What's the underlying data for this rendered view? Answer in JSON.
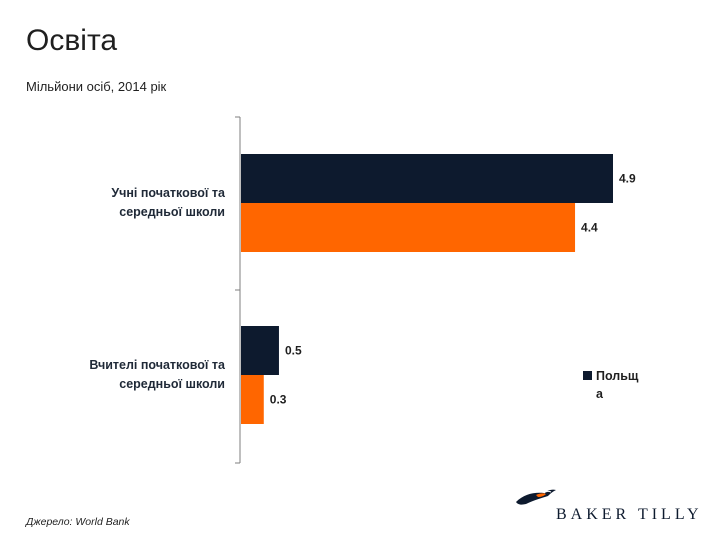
{
  "title": "Освіта",
  "subtitle": "Мільйони осіб, 2014 рік",
  "source": "Джерело: World Bank",
  "logo": {
    "text": "BAKER TILLY"
  },
  "colors": {
    "series1": "#0d1a2e",
    "series2": "#ff6600",
    "axis": "#7f7f7f"
  },
  "chart_data": {
    "type": "bar",
    "orientation": "horizontal",
    "categories": [
      [
        "Учні початкової та",
        "середньої школи"
      ],
      [
        "Вчителі початкової та",
        "середньої школи"
      ]
    ],
    "series": [
      {
        "name": "Польща",
        "values": [
          4.9,
          0.5
        ],
        "color": "#0d1a2e"
      },
      {
        "values": [
          4.4,
          0.3
        ],
        "color": "#ff6600"
      }
    ],
    "xlim": [
      0,
      5.5
    ],
    "grid": false,
    "legend_position": "right",
    "legend_text_lines": [
      "Польщ",
      "а"
    ]
  }
}
